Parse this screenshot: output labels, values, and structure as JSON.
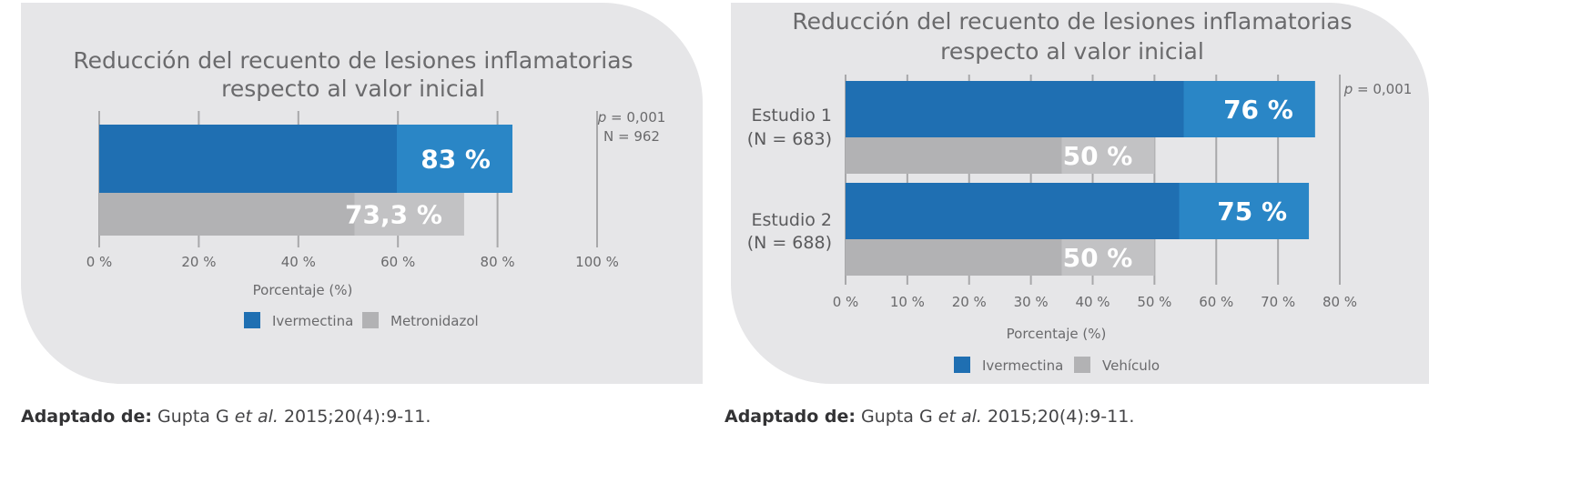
{
  "colors": {
    "ivermectina": "#1f6fb2",
    "ivermectina_light": "#2a86c6",
    "comparator": "#b2b2b4",
    "comparator_light": "#c2c2c4",
    "grid": "#a8a8aa",
    "panel": "#e6e6e8"
  },
  "chart_data": [
    {
      "type": "bar",
      "orientation": "horizontal",
      "title_lines": [
        "Reducción del recuento de lesiones inflamatorias",
        "respecto al valor inicial"
      ],
      "xlabel": "Porcentaje (%)",
      "xlim": [
        0,
        100
      ],
      "ticks": [
        0,
        20,
        40,
        60,
        80,
        100
      ],
      "tick_labels": [
        "0 %",
        "20 %",
        "40 %",
        "60 %",
        "80 %",
        "100 %"
      ],
      "grid": true,
      "annotation": {
        "p_symbol": "p",
        "p_value": " = 0,001",
        "n": "N = 962"
      },
      "groups": [
        {
          "label_lines": [],
          "bars": [
            {
              "series": "Ivermectina",
              "value": 83,
              "label": "83 %"
            },
            {
              "series": "Metronidazol",
              "value": 73.3,
              "label": "73,3 %"
            }
          ]
        }
      ],
      "legend": {
        "placement": "bottom",
        "items": [
          "Ivermectina",
          "Metronidazol"
        ]
      }
    },
    {
      "type": "bar",
      "orientation": "horizontal",
      "title_lines": [
        "Reducción del recuento de lesiones inflamatorias",
        "respecto al valor inicial"
      ],
      "xlabel": "Porcentaje (%)",
      "xlim": [
        0,
        80
      ],
      "ticks": [
        0,
        10,
        20,
        30,
        40,
        50,
        60,
        70,
        80
      ],
      "tick_labels": [
        "0 %",
        "10 %",
        "20 %",
        "30 %",
        "40 %",
        "50 %",
        "60 %",
        "70 %",
        "80 %"
      ],
      "grid": true,
      "annotation": {
        "p_symbol": "p",
        "p_value": " = 0,001"
      },
      "groups": [
        {
          "label_lines": [
            "Estudio 1",
            "(N = 683)"
          ],
          "bars": [
            {
              "series": "Ivermectina",
              "value": 76,
              "label": "76 %"
            },
            {
              "series": "Vehículo",
              "value": 50,
              "label": "50 %"
            }
          ]
        },
        {
          "label_lines": [
            "Estudio 2",
            "(N = 688)"
          ],
          "bars": [
            {
              "series": "Ivermectina",
              "value": 75,
              "label": "75 %"
            },
            {
              "series": "Vehículo",
              "value": 50,
              "label": "50 %"
            }
          ]
        }
      ],
      "legend": {
        "placement": "bottom",
        "items": [
          "Ivermectina",
          "Vehículo"
        ]
      }
    }
  ],
  "sources": [
    {
      "prefix": "Adaptado de:",
      "author": "Gupta G ",
      "etal": "et al.",
      "ref": " 2015;20(4):9-11."
    },
    {
      "prefix": "Adaptado de:",
      "author": "Gupta G ",
      "etal": "et al.",
      "ref": " 2015;20(4):9-11."
    }
  ]
}
